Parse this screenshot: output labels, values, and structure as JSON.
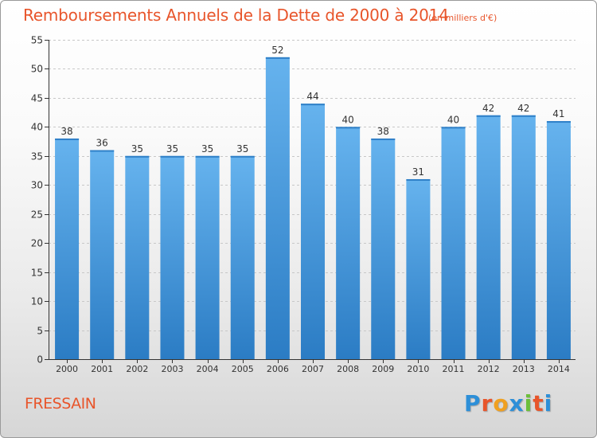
{
  "title": "Remboursements Annuels de la Dette de 2000 à 2014",
  "subtitle": "(en milliers d'€)",
  "location": "FRESSAIN",
  "logo": {
    "letters": [
      "P",
      "r",
      "o",
      "x",
      "i",
      "t",
      "i"
    ],
    "colors": [
      "#2d8fd8",
      "#e8552b",
      "#f0a020",
      "#2d8fd8",
      "#6cbf3a",
      "#e8552b",
      "#2d8fd8"
    ]
  },
  "colors": {
    "bar_top": "#66b3ee",
    "bar_bottom": "#2b7cc4",
    "axis": "#333333",
    "grid": "#c8c8c8",
    "title": "#e8552b"
  },
  "chart_data": {
    "type": "bar",
    "title": "Remboursements Annuels de la Dette de 2000 à 2014",
    "xlabel": "",
    "ylabel": "",
    "categories": [
      "2000",
      "2001",
      "2002",
      "2003",
      "2004",
      "2005",
      "2006",
      "2007",
      "2008",
      "2009",
      "2010",
      "2011",
      "2012",
      "2013",
      "2014"
    ],
    "values": [
      38,
      36,
      35,
      35,
      35,
      35,
      52,
      44,
      40,
      38,
      31,
      40,
      42,
      42,
      41
    ],
    "ylim": [
      0,
      55
    ],
    "yticks": [
      0,
      5,
      10,
      15,
      20,
      25,
      30,
      35,
      40,
      45,
      50,
      55
    ],
    "grid": true,
    "data_labels": true
  }
}
